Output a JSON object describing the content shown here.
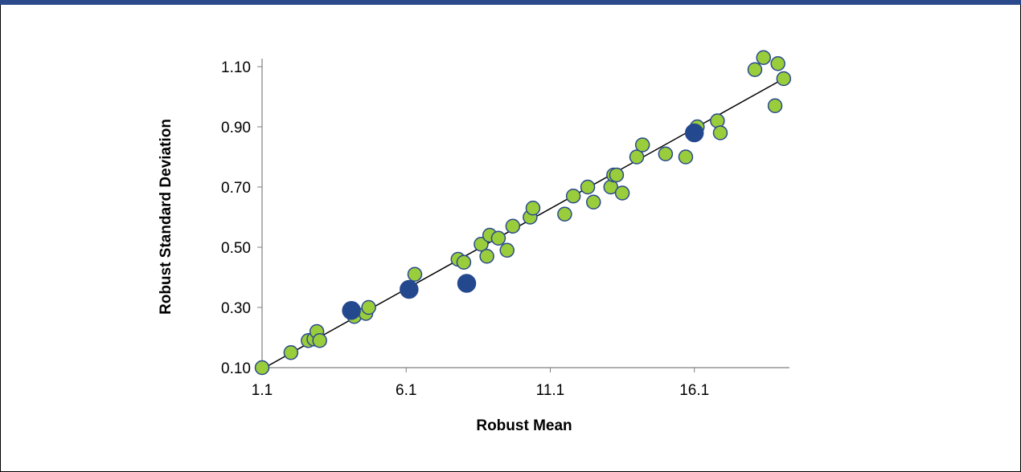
{
  "chart_data": {
    "type": "scatter",
    "title": "",
    "xlabel": "Robust Mean",
    "ylabel": "Robust Standard Deviation",
    "xlim": [
      1.1,
      19.4
    ],
    "ylim": [
      0.1,
      1.1
    ],
    "x_ticks": [
      "1.1",
      "6.1",
      "11.1",
      "16.1"
    ],
    "y_ticks": [
      "0.10",
      "0.30",
      "0.50",
      "0.70",
      "0.90",
      "1.10"
    ],
    "grid": false,
    "legend": "none",
    "series": [
      {
        "color": "#9acd3b",
        "edge_color": "#2a4a8c",
        "marker": "circle-small",
        "points": [
          [
            1.1,
            0.1
          ],
          [
            2.1,
            0.15
          ],
          [
            2.7,
            0.19
          ],
          [
            2.9,
            0.195
          ],
          [
            3.0,
            0.22
          ],
          [
            3.1,
            0.19
          ],
          [
            4.3,
            0.27
          ],
          [
            4.7,
            0.28
          ],
          [
            4.8,
            0.3
          ],
          [
            6.4,
            0.41
          ],
          [
            7.9,
            0.46
          ],
          [
            8.1,
            0.45
          ],
          [
            8.7,
            0.51
          ],
          [
            8.9,
            0.47
          ],
          [
            9.0,
            0.54
          ],
          [
            9.3,
            0.53
          ],
          [
            9.6,
            0.49
          ],
          [
            9.8,
            0.57
          ],
          [
            10.4,
            0.6
          ],
          [
            10.5,
            0.63
          ],
          [
            11.6,
            0.61
          ],
          [
            11.9,
            0.67
          ],
          [
            12.4,
            0.7
          ],
          [
            12.6,
            0.65
          ],
          [
            13.2,
            0.7
          ],
          [
            13.3,
            0.74
          ],
          [
            13.4,
            0.74
          ],
          [
            13.6,
            0.68
          ],
          [
            14.1,
            0.8
          ],
          [
            14.3,
            0.84
          ],
          [
            15.1,
            0.81
          ],
          [
            15.8,
            0.8
          ],
          [
            16.2,
            0.9
          ],
          [
            16.9,
            0.92
          ],
          [
            17.0,
            0.88
          ],
          [
            18.2,
            1.09
          ],
          [
            18.5,
            1.13
          ],
          [
            18.9,
            0.97
          ],
          [
            19.0,
            1.11
          ],
          [
            19.2,
            1.06
          ]
        ]
      },
      {
        "color": "#24488e",
        "edge_color": "#24488e",
        "marker": "circle-large",
        "points": [
          [
            4.2,
            0.29
          ],
          [
            6.2,
            0.36
          ],
          [
            8.2,
            0.38
          ],
          [
            16.1,
            0.88
          ]
        ]
      }
    ],
    "trendline": {
      "type": "linear",
      "color": "#000000",
      "x": [
        1.1,
        19.2
      ],
      "y": [
        0.095,
        1.06
      ]
    }
  }
}
